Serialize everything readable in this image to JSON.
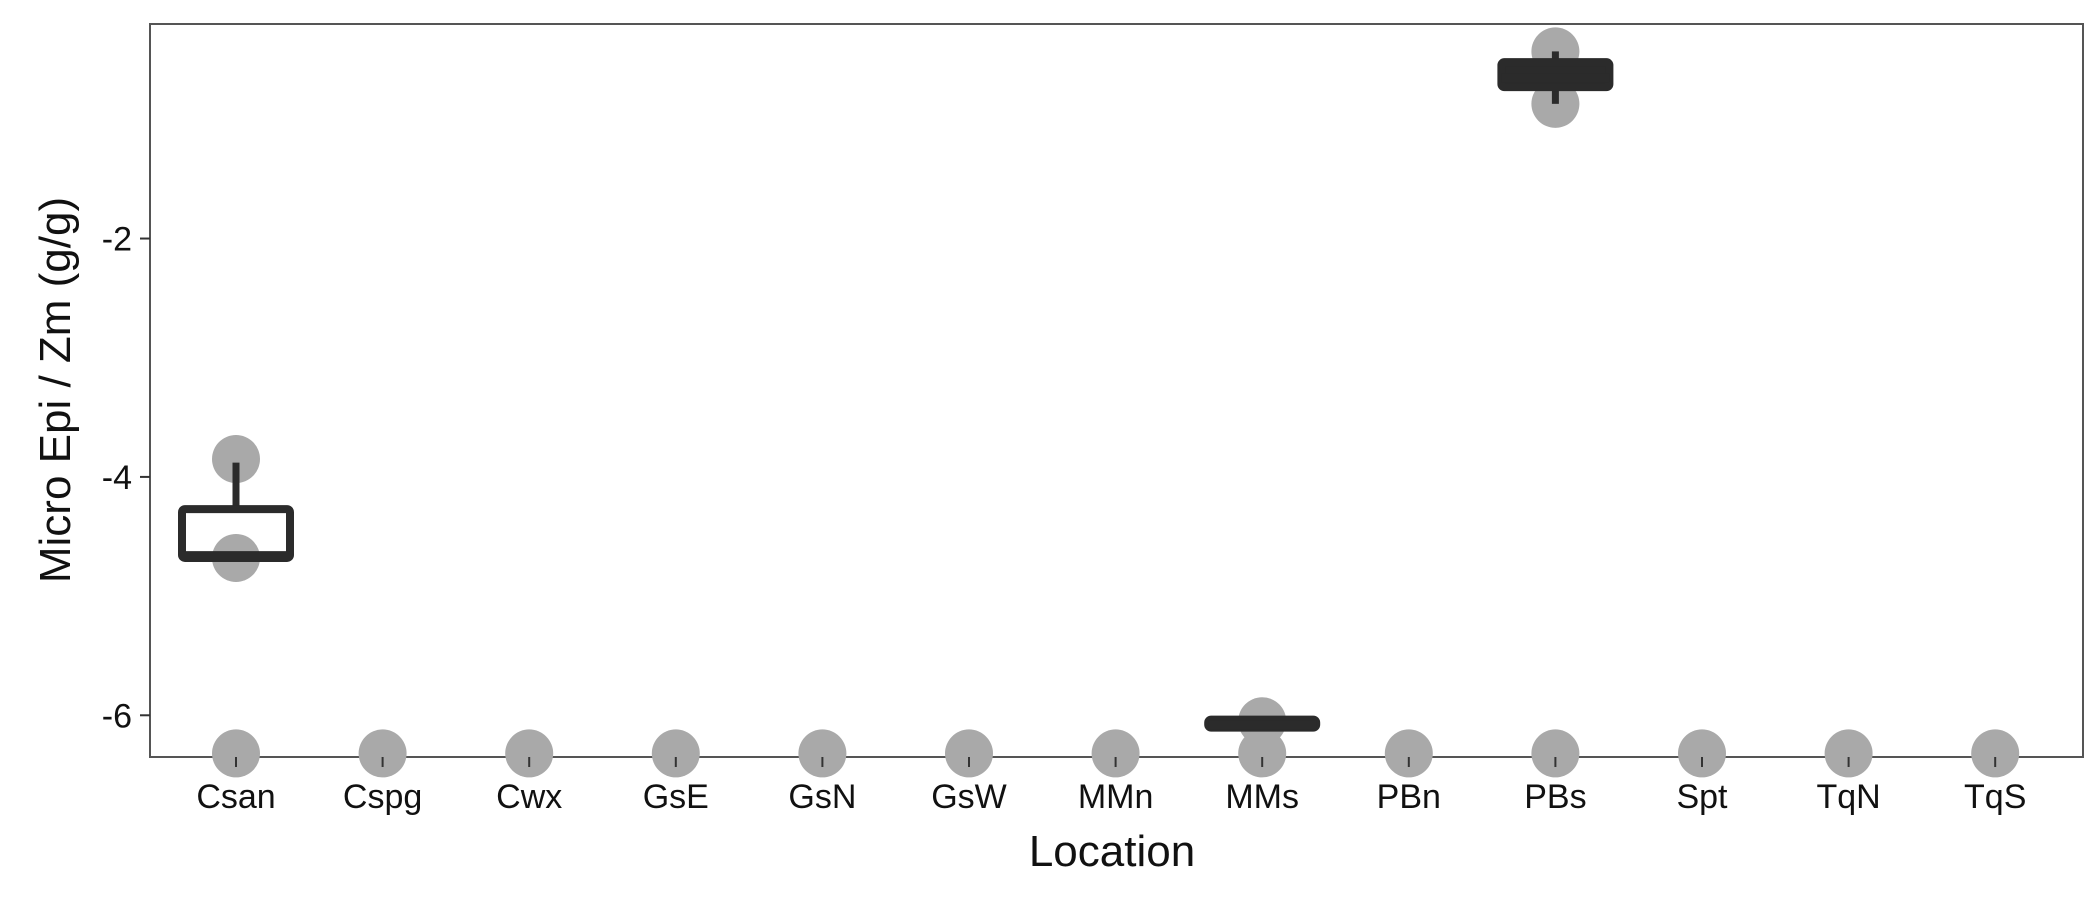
{
  "chart_data": {
    "type": "box",
    "xlabel": "Location",
    "ylabel": "Micro Epi / Zm (g/g)",
    "categories": [
      "Csan",
      "Cspg",
      "Cwx",
      "GsE",
      "GsN",
      "GsW",
      "MMn",
      "MMs",
      "PBn",
      "PBs",
      "Spt",
      "TqN",
      "TqS"
    ],
    "ylim": [
      -6.35,
      -0.2
    ],
    "yticks": [
      -6,
      -4,
      -2
    ],
    "ytick_labels": [
      "-6",
      "-4",
      "-2"
    ],
    "grid": false,
    "legend": "none",
    "colors": {
      "point": "#a9a9a9",
      "box": "#2b2b2b",
      "panel_border": "#555555"
    },
    "points": [
      {
        "category": "Csan",
        "y": -3.85
      },
      {
        "category": "Csan",
        "y": -4.68
      },
      {
        "category": "Csan",
        "y": -6.32
      },
      {
        "category": "Cspg",
        "y": -6.32
      },
      {
        "category": "Cwx",
        "y": -6.32
      },
      {
        "category": "GsE",
        "y": -6.32
      },
      {
        "category": "GsN",
        "y": -6.32
      },
      {
        "category": "GsW",
        "y": -6.32
      },
      {
        "category": "MMn",
        "y": -6.32
      },
      {
        "category": "MMs",
        "y": -6.05
      },
      {
        "category": "MMs",
        "y": -6.32
      },
      {
        "category": "PBn",
        "y": -6.32
      },
      {
        "category": "PBs",
        "y": -0.43
      },
      {
        "category": "PBs",
        "y": -0.87
      },
      {
        "category": "PBs",
        "y": -6.32
      },
      {
        "category": "Spt",
        "y": -6.32
      },
      {
        "category": "TqN",
        "y": -6.32
      },
      {
        "category": "TqS",
        "y": -6.32
      }
    ],
    "boxes": [
      {
        "category": "Csan",
        "q1": -4.68,
        "median": -4.66,
        "q3": -4.27,
        "whisker_low": -4.68,
        "whisker_high": -3.88,
        "style": "outline"
      },
      {
        "category": "MMs",
        "q1": -6.08,
        "median": -6.08,
        "q3": -6.06,
        "whisker_low": -6.08,
        "whisker_high": -6.06,
        "style": "filled"
      },
      {
        "category": "PBs",
        "q1": -0.73,
        "median": -0.65,
        "q3": -0.52,
        "whisker_low": -0.87,
        "whisker_high": -0.43,
        "style": "filled"
      }
    ]
  }
}
